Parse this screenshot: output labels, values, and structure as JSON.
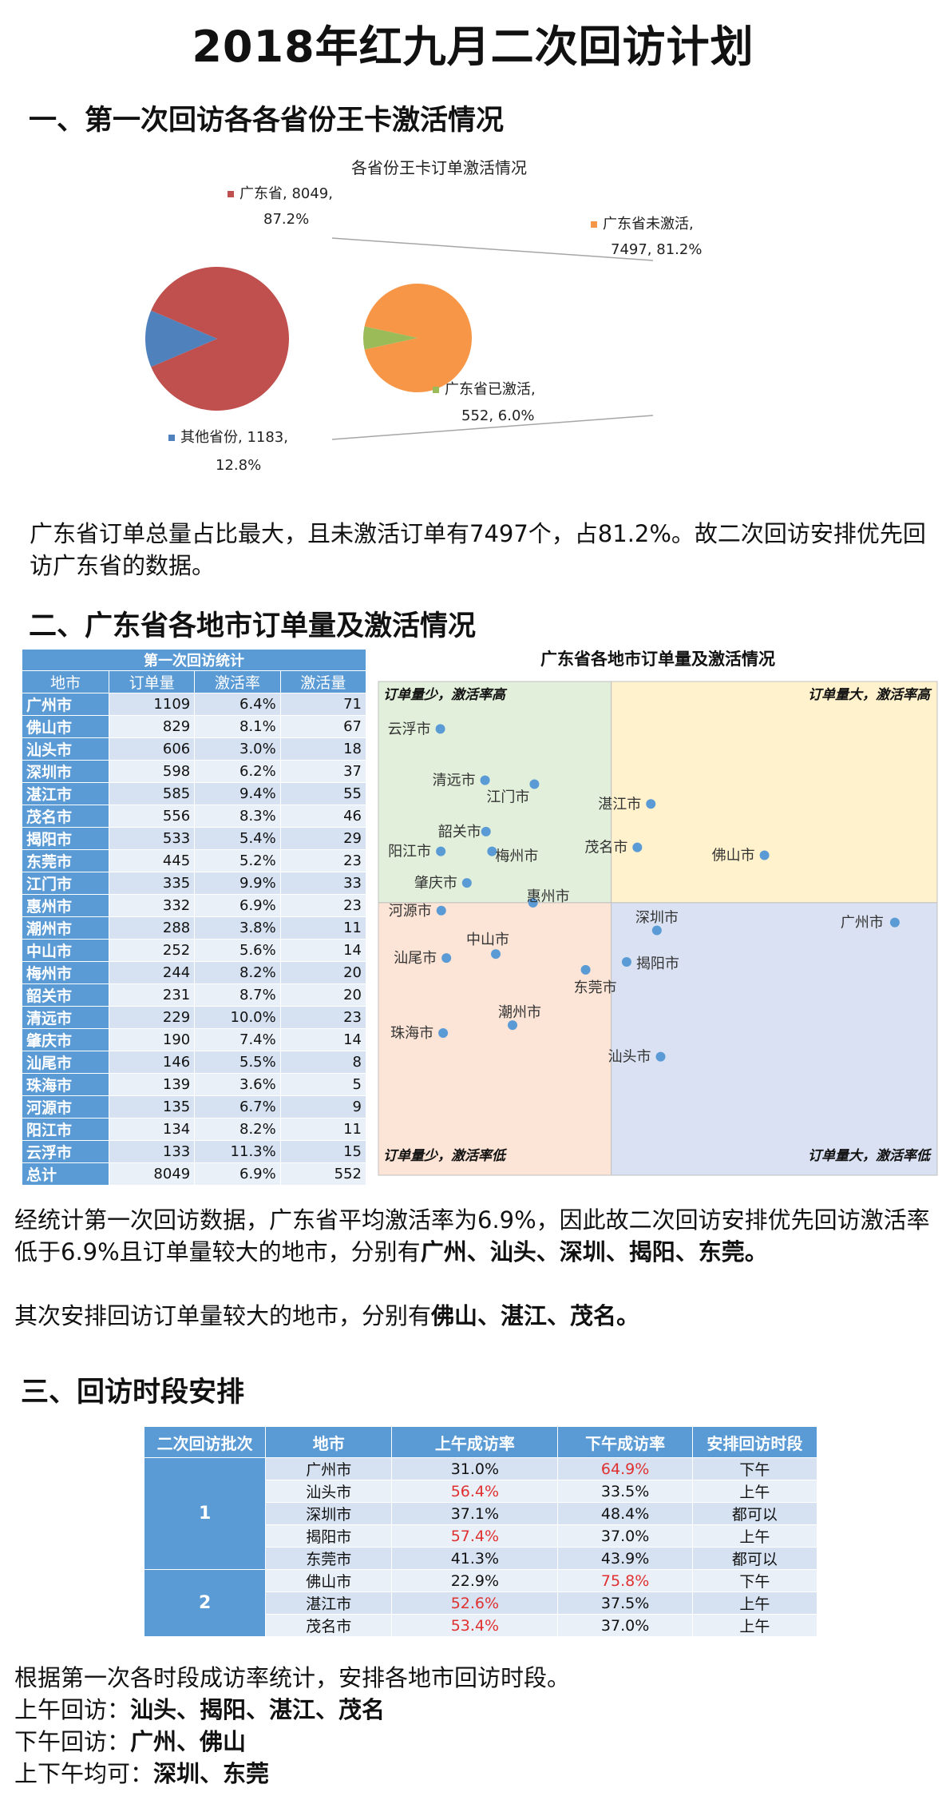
{
  "title": "2018年红九月二次回访计划",
  "section1": {
    "heading": "一、第一次回访各各省份王卡激活情况",
    "chart_data": {
      "type": "pie",
      "title": "各省份王卡订单激活情况",
      "primary": [
        {
          "name": "广东省",
          "value": 8049,
          "percent": 87.2,
          "label_line1": "广东省, 8049,",
          "label_line2": "87.2%",
          "color": "#c0504d"
        },
        {
          "name": "其他省份",
          "value": 1183,
          "percent": 12.8,
          "label_line1": "其他省份, 1183,",
          "label_line2": "12.8%",
          "color": "#4f81bd"
        }
      ],
      "secondary": [
        {
          "name": "广东省未激活",
          "value": 7497,
          "percent": 81.2,
          "label_line1": "广东省未激活,",
          "label_line2": "7497, 81.2%",
          "color": "#f79646"
        },
        {
          "name": "广东省已激活",
          "value": 552,
          "percent": 6.0,
          "label_line1": "广东省已激活,",
          "label_line2": "552, 6.0%",
          "color": "#9bbb59"
        }
      ]
    },
    "paragraph": "广东省订单总量占比最大，且未激活订单有7497个，占81.2%。故二次回访安排优先回访广东省的数据。"
  },
  "section2": {
    "heading": "二、广东省各地市订单量及激活情况",
    "table": {
      "caption": "第一次回访统计",
      "headers": [
        "地市",
        "订单量",
        "激活率",
        "激活量"
      ],
      "rows": [
        [
          "广州市",
          "1109",
          "6.4%",
          "71"
        ],
        [
          "佛山市",
          "829",
          "8.1%",
          "67"
        ],
        [
          "汕头市",
          "606",
          "3.0%",
          "18"
        ],
        [
          "深圳市",
          "598",
          "6.2%",
          "37"
        ],
        [
          "湛江市",
          "585",
          "9.4%",
          "55"
        ],
        [
          "茂名市",
          "556",
          "8.3%",
          "46"
        ],
        [
          "揭阳市",
          "533",
          "5.4%",
          "29"
        ],
        [
          "东莞市",
          "445",
          "5.2%",
          "23"
        ],
        [
          "江门市",
          "335",
          "9.9%",
          "33"
        ],
        [
          "惠州市",
          "332",
          "6.9%",
          "23"
        ],
        [
          "潮州市",
          "288",
          "3.8%",
          "11"
        ],
        [
          "中山市",
          "252",
          "5.6%",
          "14"
        ],
        [
          "梅州市",
          "244",
          "8.2%",
          "20"
        ],
        [
          "韶关市",
          "231",
          "8.7%",
          "20"
        ],
        [
          "清远市",
          "229",
          "10.0%",
          "23"
        ],
        [
          "肇庆市",
          "190",
          "7.4%",
          "14"
        ],
        [
          "汕尾市",
          "146",
          "5.5%",
          "8"
        ],
        [
          "珠海市",
          "139",
          "3.6%",
          "5"
        ],
        [
          "河源市",
          "135",
          "6.7%",
          "9"
        ],
        [
          "阳江市",
          "134",
          "8.2%",
          "11"
        ],
        [
          "云浮市",
          "133",
          "11.3%",
          "15"
        ]
      ],
      "total": [
        "总计",
        "8049",
        "6.9%",
        "552"
      ]
    },
    "quadrant_chart": {
      "type": "scatter",
      "title": "广东省各地市订单量及激活情况",
      "xlabel": "订单量",
      "ylabel": "激活率",
      "x_split": 500,
      "y_split": 6.9,
      "x_range": [
        0,
        1200
      ],
      "y_range": [
        0,
        12.5
      ],
      "quadrant_labels": {
        "top_left": "订单量少，激活率高",
        "top_right": "订单量大，激活率高",
        "bottom_left": "订单量少，激活率低",
        "bottom_right": "订单量大，激活率低"
      },
      "quadrant_colors": {
        "top_left": "#e2efda",
        "top_right": "#fff2cc",
        "bottom_left": "#fce4d6",
        "bottom_right": "#d9e1f2"
      },
      "points": [
        {
          "name": "广州市",
          "x": 1109,
          "y": 6.4
        },
        {
          "name": "佛山市",
          "x": 829,
          "y": 8.1
        },
        {
          "name": "汕头市",
          "x": 606,
          "y": 3.0
        },
        {
          "name": "深圳市",
          "x": 598,
          "y": 6.2
        },
        {
          "name": "湛江市",
          "x": 585,
          "y": 9.4
        },
        {
          "name": "茂名市",
          "x": 556,
          "y": 8.3
        },
        {
          "name": "揭阳市",
          "x": 533,
          "y": 5.4
        },
        {
          "name": "东莞市",
          "x": 445,
          "y": 5.2
        },
        {
          "name": "江门市",
          "x": 335,
          "y": 9.9
        },
        {
          "name": "惠州市",
          "x": 332,
          "y": 6.9
        },
        {
          "name": "潮州市",
          "x": 288,
          "y": 3.8
        },
        {
          "name": "中山市",
          "x": 252,
          "y": 5.6
        },
        {
          "name": "梅州市",
          "x": 244,
          "y": 8.2
        },
        {
          "name": "韶关市",
          "x": 231,
          "y": 8.7
        },
        {
          "name": "清远市",
          "x": 229,
          "y": 10.0
        },
        {
          "name": "肇庆市",
          "x": 190,
          "y": 7.4
        },
        {
          "name": "汕尾市",
          "x": 146,
          "y": 5.5
        },
        {
          "name": "珠海市",
          "x": 139,
          "y": 3.6
        },
        {
          "name": "河源市",
          "x": 135,
          "y": 6.7
        },
        {
          "name": "阳江市",
          "x": 134,
          "y": 8.2
        },
        {
          "name": "云浮市",
          "x": 133,
          "y": 11.3
        }
      ]
    },
    "para1_a": "经统计第一次回访数据，广东省平均激活率为6.9%，因此故二次回访安排优先回访激活率低于6.9%且订单量较大的地市，分别有",
    "para1_b": "广州、汕头、深圳、揭阳、东莞。",
    "para2_a": "其次安排回访订单量较大的地市，分别有",
    "para2_b": "佛山、湛江、茂名。"
  },
  "section3": {
    "heading": "三、回访时段安排",
    "table": {
      "headers": [
        "二次回访批次",
        "地市",
        "上午成访率",
        "下午成访率",
        "安排回访时段"
      ],
      "batches": [
        {
          "batch": "1",
          "rows": [
            {
              "city": "广州市",
              "am": "31.0%",
              "pm": "64.9%",
              "slot": "下午",
              "am_red": false,
              "pm_red": true
            },
            {
              "city": "汕头市",
              "am": "56.4%",
              "pm": "33.5%",
              "slot": "上午",
              "am_red": true,
              "pm_red": false
            },
            {
              "city": "深圳市",
              "am": "37.1%",
              "pm": "48.4%",
              "slot": "都可以",
              "am_red": false,
              "pm_red": false
            },
            {
              "city": "揭阳市",
              "am": "57.4%",
              "pm": "37.0%",
              "slot": "上午",
              "am_red": true,
              "pm_red": false
            },
            {
              "city": "东莞市",
              "am": "41.3%",
              "pm": "43.9%",
              "slot": "都可以",
              "am_red": false,
              "pm_red": false
            }
          ]
        },
        {
          "batch": "2",
          "rows": [
            {
              "city": "佛山市",
              "am": "22.9%",
              "pm": "75.8%",
              "slot": "下午",
              "am_red": false,
              "pm_red": true
            },
            {
              "city": "湛江市",
              "am": "52.6%",
              "pm": "37.5%",
              "slot": "上午",
              "am_red": true,
              "pm_red": false
            },
            {
              "city": "茂名市",
              "am": "53.4%",
              "pm": "37.0%",
              "slot": "上午",
              "am_red": true,
              "pm_red": false
            }
          ]
        }
      ]
    },
    "line1": "根据第一次各时段成访率统计，安排各地市回访时段。",
    "line2_a": "上午回访：",
    "line2_b": "汕头、揭阳、湛江、茂名",
    "line3_a": "下午回访：",
    "line3_b": "广州、佛山",
    "line4_a": "上下午均可：",
    "line4_b": "深圳、东莞"
  }
}
